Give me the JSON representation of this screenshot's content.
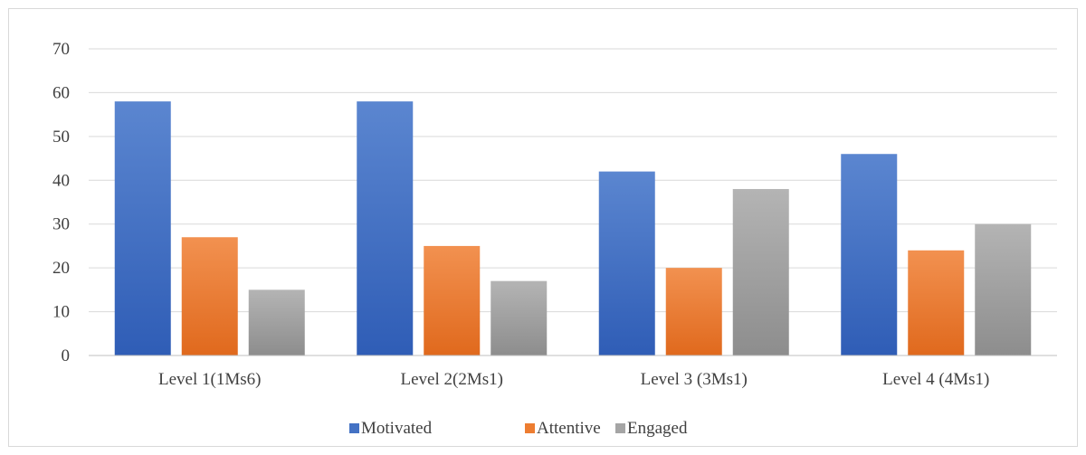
{
  "chart_data": {
    "type": "bar",
    "categories": [
      "Level 1(1Ms6)",
      "Level 2(2Ms1)",
      "Level 3 (3Ms1)",
      "Level 4 (4Ms1)"
    ],
    "series": [
      {
        "name": "Motivated",
        "values": [
          58,
          58,
          42,
          46
        ],
        "color": "#4472c4"
      },
      {
        "name": "Attentive",
        "values": [
          27,
          25,
          20,
          24
        ],
        "color": "#ed7d31"
      },
      {
        "name": "Engaged",
        "values": [
          15,
          17,
          38,
          30
        ],
        "color": "#a5a5a5"
      }
    ],
    "ylim": [
      0,
      70
    ],
    "yticks": [
      0,
      10,
      20,
      30,
      40,
      50,
      60,
      70
    ],
    "grid": true,
    "legend_position": "bottom"
  }
}
